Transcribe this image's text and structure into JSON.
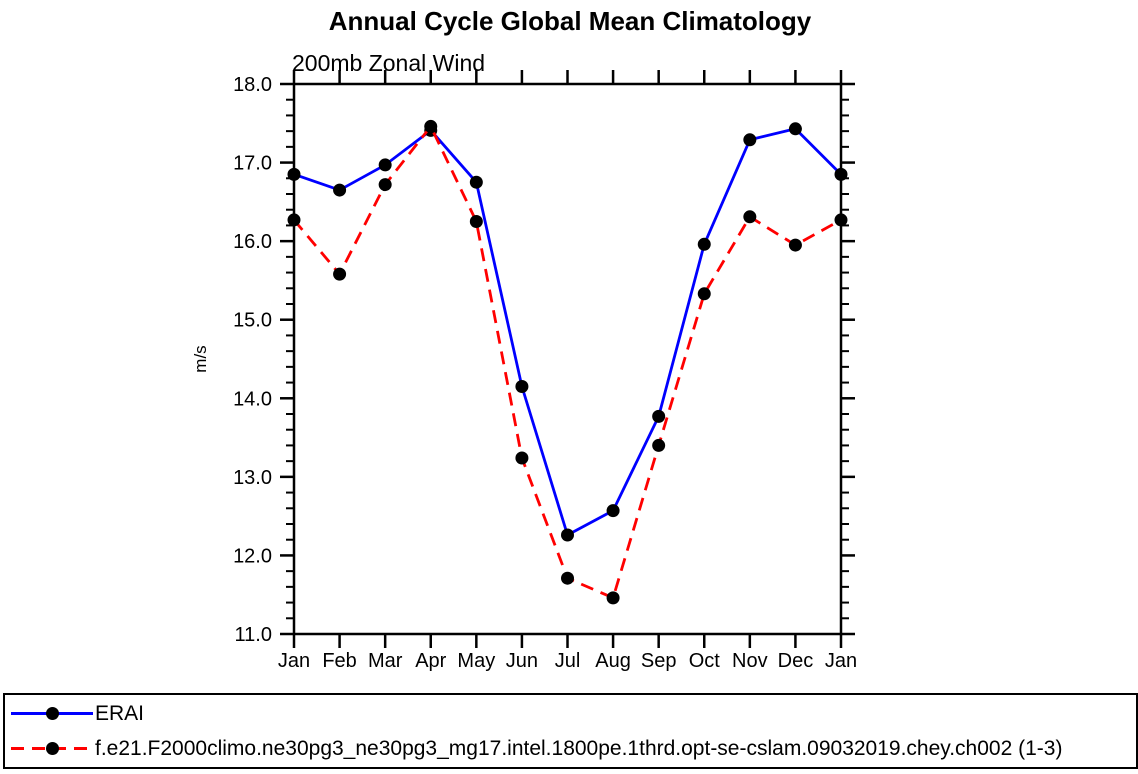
{
  "title": "Annual Cycle Global Mean Climatology",
  "subtitle": "200mb Zonal Wind",
  "chart_data": {
    "type": "line",
    "title": "Annual Cycle Global Mean Climatology",
    "subtitle": "200mb Zonal Wind",
    "ylabel": "m/s",
    "categories": [
      "Jan",
      "Feb",
      "Mar",
      "Apr",
      "May",
      "Jun",
      "Jul",
      "Aug",
      "Sep",
      "Oct",
      "Nov",
      "Dec",
      "Jan"
    ],
    "series": [
      {
        "name": "ERAI",
        "color": "#0000ff",
        "line_style": "solid",
        "marker": "filled-circle",
        "marker_color": "#000000",
        "values": [
          16.85,
          16.65,
          16.97,
          17.41,
          16.75,
          14.15,
          12.26,
          12.57,
          13.77,
          15.96,
          17.29,
          17.43,
          16.85
        ]
      },
      {
        "name": "f.e21.F2000climo.ne30pg3_ne30pg3_mg17.intel.1800pe.1thrd.opt-se-cslam.09032019.chey.ch002 (1-3)",
        "color": "#ff0000",
        "line_style": "dashed",
        "marker": "filled-circle",
        "marker_color": "#000000",
        "values": [
          16.27,
          15.58,
          16.72,
          17.46,
          16.25,
          13.24,
          11.71,
          11.46,
          13.4,
          15.33,
          16.31,
          15.95,
          16.27
        ]
      }
    ],
    "ylim": [
      11.0,
      18.0
    ],
    "ytick_step": 1.0,
    "yminor_step": 0.2,
    "ytick_labels": [
      "11.0",
      "12.0",
      "13.0",
      "14.0",
      "15.0",
      "16.0",
      "17.0",
      "18.0"
    ],
    "grid": false,
    "tick_direction": "out",
    "legend_position": "bottom"
  },
  "legend": {
    "entries": [
      {
        "label": "ERAI"
      },
      {
        "label": "f.e21.F2000climo.ne30pg3_ne30pg3_mg17.intel.1800pe.1thrd.opt-se-cslam.09032019.chey.ch002 (1-3)"
      }
    ]
  }
}
